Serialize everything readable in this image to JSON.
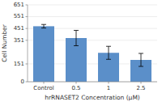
{
  "chart_data": {
    "type": "bar",
    "categories": [
      "Control",
      "0.5",
      "1",
      "2.5"
    ],
    "values": [
      470,
      370,
      245,
      185
    ],
    "errors": [
      15,
      65,
      55,
      55
    ],
    "color": "#5b8fc9",
    "xlabel": "hrRNASET2 Concentration (μM)",
    "ylabel": "Cell Number",
    "ylim": [
      0,
      651
    ],
    "yticks": [
      0,
      151,
      351,
      451,
      551,
      651
    ],
    "grid": true
  }
}
